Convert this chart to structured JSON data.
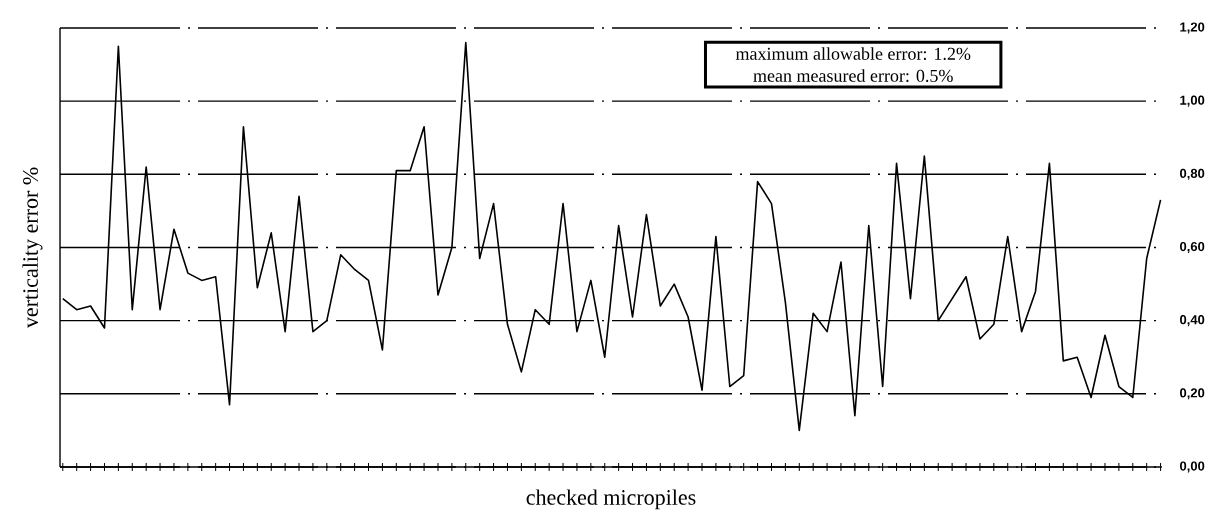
{
  "chart_data": {
    "type": "line",
    "xlabel": "checked  micropiles",
    "ylabel": "verticality  error  %",
    "categories": [
      null,
      null,
      null,
      null,
      null,
      null,
      null,
      null,
      null,
      null,
      null,
      null,
      null,
      null,
      null,
      null,
      null,
      null,
      null,
      null,
      null,
      null,
      null,
      null,
      null,
      null,
      null,
      null,
      null,
      null,
      null,
      null,
      null,
      null,
      null,
      null,
      null,
      null,
      null,
      null,
      null,
      null,
      null,
      null,
      null,
      null,
      null,
      null,
      null,
      null,
      null,
      null,
      null,
      null,
      null,
      null,
      null,
      null,
      null,
      null,
      null,
      null,
      null,
      null,
      null,
      null,
      null,
      null,
      null,
      null,
      null,
      null,
      null,
      null,
      null,
      null,
      null,
      null,
      null,
      null
    ],
    "values": [
      0.46,
      0.43,
      0.44,
      0.38,
      1.15,
      0.43,
      0.82,
      0.43,
      0.65,
      0.53,
      0.51,
      0.52,
      0.17,
      0.93,
      0.49,
      0.64,
      0.37,
      0.74,
      0.37,
      0.4,
      0.58,
      0.54,
      0.51,
      0.32,
      0.81,
      0.81,
      0.93,
      0.47,
      0.6,
      1.16,
      0.57,
      0.72,
      0.39,
      0.26,
      0.43,
      0.39,
      0.72,
      0.37,
      0.51,
      0.3,
      0.66,
      0.41,
      0.69,
      0.44,
      0.5,
      0.41,
      0.21,
      0.63,
      0.22,
      0.25,
      0.78,
      0.72,
      0.45,
      0.1,
      0.42,
      0.37,
      0.56,
      0.14,
      0.66,
      0.22,
      0.83,
      0.46,
      0.85,
      0.4,
      0.46,
      0.52,
      0.35,
      0.39,
      0.63,
      0.37,
      0.48,
      0.83,
      0.29,
      0.3,
      0.19,
      0.36,
      0.22,
      0.19,
      0.57,
      0.73
    ],
    "color": "#000000",
    "ylim": [
      0,
      1.2
    ],
    "yticks": [
      {
        "value": 0,
        "label": "0,00"
      },
      {
        "value": 0.2,
        "label": "0,20"
      },
      {
        "value": 0.4,
        "label": "0,40"
      },
      {
        "value": 0.6,
        "label": "0,60"
      },
      {
        "value": 0.8,
        "label": "0,80"
      },
      {
        "value": 1.0,
        "label": "1,00"
      },
      {
        "value": 1.2,
        "label": "1,20"
      }
    ],
    "grid": "y",
    "annotations": [
      "maximum allowable error: 1.2%",
      "mean measured error: 0.5%"
    ]
  }
}
